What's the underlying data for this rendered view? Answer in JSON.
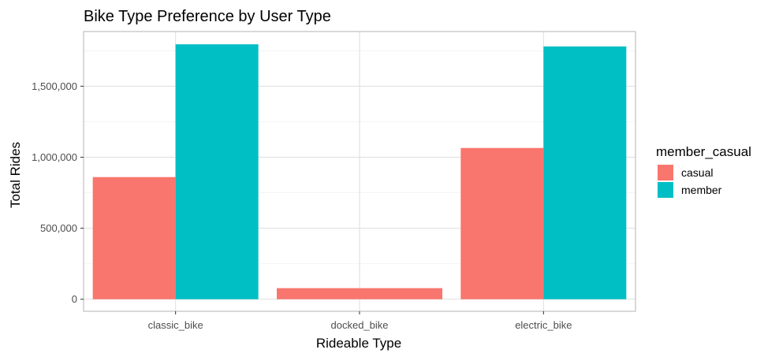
{
  "chart_data": {
    "type": "bar",
    "title": "Bike Type Preference by User Type",
    "xlabel": "Rideable Type",
    "ylabel": "Total Rides",
    "categories": [
      "classic_bike",
      "docked_bike",
      "electric_bike"
    ],
    "series": [
      {
        "name": "casual",
        "values": [
          860000,
          78000,
          1065000
        ],
        "color": "#F8766D"
      },
      {
        "name": "member",
        "values": [
          1795000,
          0,
          1780000
        ],
        "color": "#00BFC4"
      }
    ],
    "ylim": [
      -85000,
      1885000
    ],
    "y_ticks": [
      0,
      500000,
      1000000,
      1500000
    ],
    "y_tick_labels": [
      "0",
      "500,000",
      "1,000,000",
      "1,500,000"
    ],
    "legend": {
      "title": "member_casual",
      "position": "right"
    },
    "grid": true,
    "theme": "light"
  }
}
